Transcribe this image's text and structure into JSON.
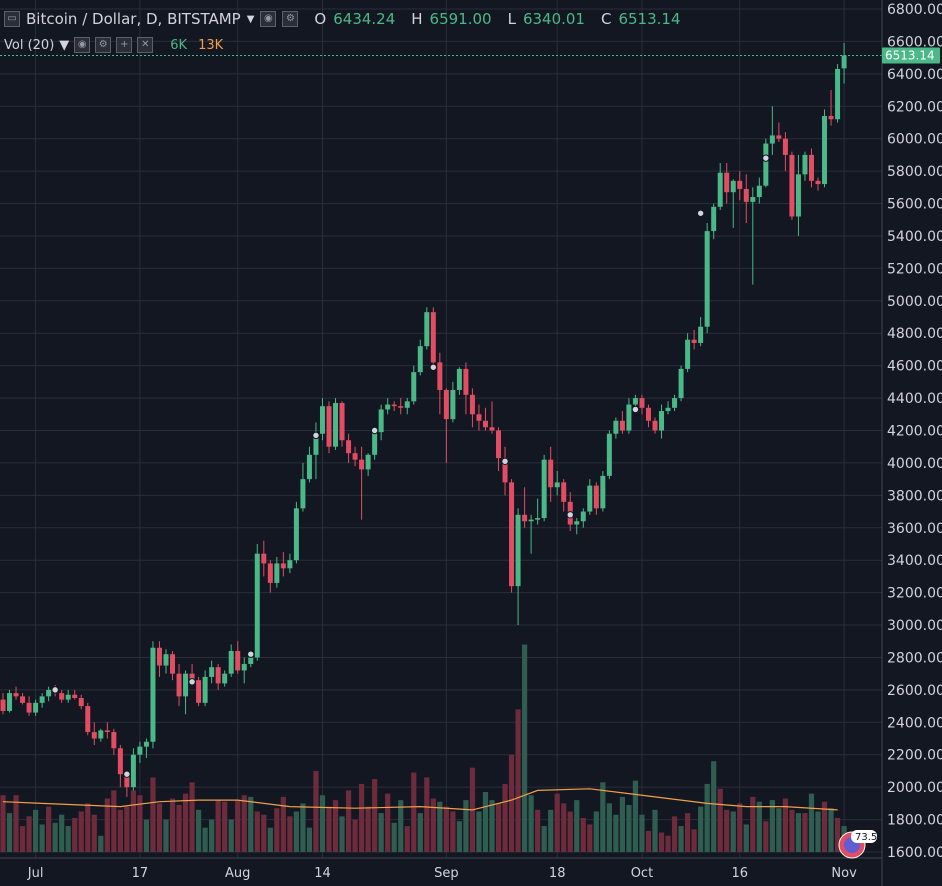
{
  "header": {
    "symbol": "Bitcoin / Dollar, D, BITSTAMP",
    "o_key": "O",
    "o_val": "6434.24",
    "h_key": "H",
    "h_val": "6591.00",
    "l_key": "L",
    "l_val": "6340.01",
    "c_key": "C",
    "c_val": "6513.14"
  },
  "volume_legend": {
    "label": "Vol (20)",
    "v1": "6K",
    "v2": "13K"
  },
  "last_price_label": "6513.14",
  "badge_text": "73.5",
  "colors": {
    "up": "#4bb887",
    "down": "#e24d64",
    "vol_up": "#2f5e50",
    "vol_down": "#6d2b3c",
    "ma": "#f0a048",
    "bg": "#131722",
    "grid": "#2a2e39"
  },
  "chart_data": {
    "type": "candlestick",
    "ylim": [
      1600,
      6800
    ],
    "y_ticks": [
      "6800.00",
      "6600.00",
      "6400.00",
      "6200.00",
      "6000.00",
      "5800.00",
      "5600.00",
      "5400.00",
      "5200.00",
      "5000.00",
      "4800.00",
      "4600.00",
      "4400.00",
      "4200.00",
      "4000.00",
      "3800.00",
      "3600.00",
      "3400.00",
      "3200.00",
      "3000.00",
      "2800.00",
      "2600.00",
      "2400.00",
      "2200.00",
      "2000.00",
      "1800.00",
      "1600.00"
    ],
    "x_labels": [
      "Jul",
      "17",
      "Aug",
      "14",
      "Sep",
      "18",
      "Oct",
      "16",
      "Nov"
    ],
    "candles": [
      [
        2540,
        2580,
        2450,
        2470
      ],
      [
        2470,
        2600,
        2460,
        2580
      ],
      [
        2580,
        2620,
        2540,
        2560
      ],
      [
        2560,
        2580,
        2510,
        2520
      ],
      [
        2520,
        2560,
        2440,
        2460
      ],
      [
        2460,
        2540,
        2440,
        2520
      ],
      [
        2520,
        2580,
        2490,
        2560
      ],
      [
        2560,
        2620,
        2530,
        2600
      ],
      [
        2600,
        2630,
        2560,
        2580
      ],
      [
        2580,
        2600,
        2520,
        2540
      ],
      [
        2540,
        2600,
        2520,
        2570
      ],
      [
        2570,
        2600,
        2540,
        2550
      ],
      [
        2550,
        2570,
        2480,
        2500
      ],
      [
        2500,
        2520,
        2320,
        2340
      ],
      [
        2340,
        2400,
        2260,
        2300
      ],
      [
        2300,
        2360,
        2280,
        2350
      ],
      [
        2350,
        2400,
        2300,
        2340
      ],
      [
        2340,
        2360,
        2200,
        2240
      ],
      [
        2240,
        2260,
        2000,
        2080
      ],
      [
        2080,
        2100,
        1940,
        2000
      ],
      [
        2000,
        2240,
        1980,
        2200
      ],
      [
        2200,
        2280,
        2150,
        2250
      ],
      [
        2250,
        2300,
        2180,
        2280
      ],
      [
        2280,
        2900,
        2240,
        2860
      ],
      [
        2860,
        2900,
        2680,
        2750
      ],
      [
        2750,
        2850,
        2700,
        2820
      ],
      [
        2820,
        2840,
        2660,
        2700
      ],
      [
        2700,
        2760,
        2500,
        2560
      ],
      [
        2560,
        2720,
        2450,
        2700
      ],
      [
        2700,
        2760,
        2640,
        2660
      ],
      [
        2660,
        2680,
        2500,
        2520
      ],
      [
        2520,
        2720,
        2500,
        2680
      ],
      [
        2680,
        2780,
        2640,
        2740
      ],
      [
        2740,
        2760,
        2600,
        2640
      ],
      [
        2640,
        2720,
        2620,
        2700
      ],
      [
        2700,
        2880,
        2680,
        2840
      ],
      [
        2840,
        2900,
        2700,
        2720
      ],
      [
        2720,
        2800,
        2640,
        2760
      ],
      [
        2760,
        2830,
        2740,
        2800
      ],
      [
        2800,
        3500,
        2780,
        3440
      ],
      [
        3440,
        3520,
        3300,
        3380
      ],
      [
        3380,
        3400,
        3200,
        3260
      ],
      [
        3260,
        3420,
        3230,
        3380
      ],
      [
        3380,
        3450,
        3300,
        3350
      ],
      [
        3350,
        3440,
        3320,
        3400
      ],
      [
        3400,
        3760,
        3380,
        3720
      ],
      [
        3720,
        4000,
        3700,
        3900
      ],
      [
        3900,
        4100,
        3880,
        4050
      ],
      [
        4050,
        4250,
        3900,
        4180
      ],
      [
        4180,
        4400,
        4140,
        4350
      ],
      [
        4350,
        4380,
        4060,
        4100
      ],
      [
        4100,
        4400,
        4080,
        4370
      ],
      [
        4370,
        4380,
        4100,
        4140
      ],
      [
        4140,
        4180,
        4000,
        4060
      ],
      [
        4060,
        4100,
        3980,
        4020
      ],
      [
        4020,
        4100,
        3650,
        3960
      ],
      [
        3960,
        4060,
        3920,
        4050
      ],
      [
        4050,
        4200,
        4020,
        4190
      ],
      [
        4190,
        4360,
        4140,
        4330
      ],
      [
        4330,
        4400,
        4300,
        4360
      ],
      [
        4360,
        4380,
        4320,
        4350
      ],
      [
        4350,
        4400,
        4300,
        4340
      ],
      [
        4340,
        4400,
        4300,
        4380
      ],
      [
        4380,
        4600,
        4360,
        4560
      ],
      [
        4560,
        4760,
        4540,
        4720
      ],
      [
        4720,
        4960,
        4700,
        4930
      ],
      [
        4930,
        4960,
        4600,
        4620
      ],
      [
        4620,
        4680,
        4300,
        4450
      ],
      [
        4450,
        4460,
        4000,
        4270
      ],
      [
        4270,
        4500,
        4250,
        4450
      ],
      [
        4450,
        4590,
        4420,
        4580
      ],
      [
        4580,
        4620,
        4300,
        4420
      ],
      [
        4420,
        4460,
        4220,
        4300
      ],
      [
        4300,
        4360,
        4200,
        4260
      ],
      [
        4260,
        4340,
        4200,
        4220
      ],
      [
        4220,
        4380,
        4180,
        4200
      ],
      [
        4200,
        4220,
        3950,
        4030
      ],
      [
        4030,
        4100,
        3800,
        3880
      ],
      [
        3880,
        3900,
        3200,
        3240
      ],
      [
        3240,
        3720,
        3000,
        3680
      ],
      [
        3680,
        3850,
        3600,
        3640
      ],
      [
        3640,
        3680,
        3440,
        3650
      ],
      [
        3650,
        3780,
        3620,
        3660
      ],
      [
        3660,
        4050,
        3640,
        4020
      ],
      [
        4020,
        4100,
        3760,
        3850
      ],
      [
        3850,
        3950,
        3800,
        3880
      ],
      [
        3880,
        3900,
        3700,
        3760
      ],
      [
        3760,
        3820,
        3580,
        3620
      ],
      [
        3620,
        3660,
        3560,
        3640
      ],
      [
        3640,
        3720,
        3600,
        3700
      ],
      [
        3700,
        3900,
        3680,
        3860
      ],
      [
        3860,
        3880,
        3680,
        3720
      ],
      [
        3720,
        3950,
        3700,
        3920
      ],
      [
        3920,
        4200,
        3900,
        4180
      ],
      [
        4180,
        4280,
        4150,
        4260
      ],
      [
        4260,
        4320,
        4180,
        4200
      ],
      [
        4200,
        4400,
        4180,
        4360
      ],
      [
        4360,
        4420,
        4320,
        4400
      ],
      [
        4400,
        4420,
        4300,
        4340
      ],
      [
        4340,
        4360,
        4220,
        4260
      ],
      [
        4260,
        4280,
        4180,
        4200
      ],
      [
        4200,
        4360,
        4150,
        4320
      ],
      [
        4320,
        4380,
        4300,
        4340
      ],
      [
        4340,
        4420,
        4320,
        4400
      ],
      [
        4400,
        4600,
        4380,
        4580
      ],
      [
        4580,
        4800,
        4560,
        4760
      ],
      [
        4760,
        4820,
        4700,
        4740
      ],
      [
        4740,
        4900,
        4720,
        4840
      ],
      [
        4840,
        5480,
        4800,
        5430
      ],
      [
        5430,
        5600,
        5380,
        5580
      ],
      [
        5580,
        5850,
        5560,
        5790
      ],
      [
        5790,
        5850,
        5600,
        5670
      ],
      [
        5670,
        5750,
        5450,
        5740
      ],
      [
        5740,
        5800,
        5620,
        5690
      ],
      [
        5690,
        5780,
        5480,
        5610
      ],
      [
        5610,
        5700,
        5100,
        5640
      ],
      [
        5640,
        5760,
        5600,
        5710
      ],
      [
        5710,
        6000,
        5700,
        5970
      ],
      [
        5970,
        6200,
        5900,
        6020
      ],
      [
        6020,
        6100,
        5980,
        6000
      ],
      [
        6000,
        6040,
        5800,
        5900
      ],
      [
        5900,
        5920,
        5500,
        5520
      ],
      [
        5520,
        5900,
        5400,
        5780
      ],
      [
        5780,
        5920,
        5740,
        5900
      ],
      [
        5900,
        5940,
        5700,
        5740
      ],
      [
        5740,
        5760,
        5680,
        5720
      ],
      [
        5720,
        6180,
        5700,
        6140
      ],
      [
        6140,
        6300,
        6080,
        6120
      ],
      [
        6120,
        6460,
        6100,
        6430
      ],
      [
        6434,
        6591,
        6340,
        6513
      ]
    ],
    "volumes": [
      [
        1950,
        0
      ],
      [
        1840,
        1
      ],
      [
        1950,
        0
      ],
      [
        1760,
        0
      ],
      [
        1820,
        0
      ],
      [
        1860,
        1
      ],
      [
        1770,
        1
      ],
      [
        1880,
        0
      ],
      [
        1780,
        1
      ],
      [
        1830,
        1
      ],
      [
        1760,
        1
      ],
      [
        1810,
        0
      ],
      [
        1850,
        0
      ],
      [
        1900,
        0
      ],
      [
        1830,
        0
      ],
      [
        1700,
        1
      ],
      [
        1930,
        0
      ],
      [
        1980,
        0
      ],
      [
        1860,
        0
      ],
      [
        1880,
        0
      ],
      [
        1980,
        0
      ],
      [
        1950,
        0
      ],
      [
        1800,
        1
      ],
      [
        2060,
        0
      ],
      [
        1900,
        0
      ],
      [
        1800,
        1
      ],
      [
        1930,
        0
      ],
      [
        1890,
        0
      ],
      [
        1960,
        0
      ],
      [
        2030,
        0
      ],
      [
        1860,
        1
      ],
      [
        1750,
        1
      ],
      [
        1800,
        1
      ],
      [
        1920,
        0
      ],
      [
        1910,
        0
      ],
      [
        1800,
        1
      ],
      [
        1920,
        0
      ],
      [
        1950,
        0
      ],
      [
        1940,
        1
      ],
      [
        1850,
        0
      ],
      [
        1830,
        0
      ],
      [
        1750,
        1
      ],
      [
        1870,
        0
      ],
      [
        1940,
        0
      ],
      [
        1820,
        0
      ],
      [
        1850,
        1
      ],
      [
        1900,
        1
      ],
      [
        1750,
        1
      ],
      [
        2100,
        0
      ],
      [
        1950,
        1
      ],
      [
        1880,
        0
      ],
      [
        1920,
        0
      ],
      [
        1820,
        1
      ],
      [
        1980,
        0
      ],
      [
        1800,
        0
      ],
      [
        2020,
        0
      ],
      [
        1880,
        0
      ],
      [
        2050,
        0
      ],
      [
        1840,
        1
      ],
      [
        1960,
        0
      ],
      [
        1780,
        1
      ],
      [
        1920,
        1
      ],
      [
        1760,
        0
      ],
      [
        2090,
        0
      ],
      [
        1840,
        1
      ],
      [
        2060,
        0
      ],
      [
        1930,
        0
      ],
      [
        1910,
        1
      ],
      [
        1880,
        0
      ],
      [
        1850,
        0
      ],
      [
        1790,
        1
      ],
      [
        1920,
        1
      ],
      [
        2120,
        0
      ],
      [
        1850,
        1
      ],
      [
        1970,
        1
      ],
      [
        1920,
        1
      ],
      [
        1900,
        0
      ],
      [
        2020,
        0
      ],
      [
        2200,
        0
      ],
      [
        2480,
        0
      ],
      [
        2880,
        1
      ],
      [
        1950,
        1
      ],
      [
        1860,
        0
      ],
      [
        1760,
        1
      ],
      [
        1860,
        1
      ],
      [
        1960,
        0
      ],
      [
        1900,
        0
      ],
      [
        1850,
        0
      ],
      [
        1920,
        1
      ],
      [
        1810,
        0
      ],
      [
        1770,
        0
      ],
      [
        1850,
        1
      ],
      [
        2030,
        1
      ],
      [
        1900,
        1
      ],
      [
        1830,
        1
      ],
      [
        1940,
        1
      ],
      [
        1890,
        1
      ],
      [
        2040,
        1
      ],
      [
        1830,
        1
      ],
      [
        1730,
        0
      ],
      [
        1860,
        1
      ],
      [
        1720,
        0
      ],
      [
        1700,
        0
      ],
      [
        1820,
        0
      ],
      [
        1760,
        1
      ],
      [
        1840,
        0
      ],
      [
        1740,
        0
      ],
      [
        1880,
        1
      ],
      [
        2020,
        1
      ],
      [
        2160,
        1
      ],
      [
        1990,
        0
      ],
      [
        1860,
        0
      ],
      [
        1850,
        1
      ],
      [
        1900,
        0
      ],
      [
        1770,
        1
      ],
      [
        1940,
        0
      ],
      [
        1910,
        1
      ],
      [
        1790,
        0
      ],
      [
        1920,
        1
      ],
      [
        1870,
        1
      ],
      [
        1930,
        0
      ],
      [
        1860,
        0
      ],
      [
        1840,
        1
      ],
      [
        1840,
        0
      ],
      [
        1960,
        1
      ],
      [
        1850,
        1
      ],
      [
        1910,
        0
      ],
      [
        1870,
        1
      ],
      [
        1810,
        0
      ],
      [
        1760,
        1
      ]
    ],
    "ma20": [
      [
        0,
        1910
      ],
      [
        6,
        1900
      ],
      [
        12,
        1890
      ],
      [
        18,
        1880
      ],
      [
        24,
        1910
      ],
      [
        30,
        1920
      ],
      [
        36,
        1920
      ],
      [
        44,
        1880
      ],
      [
        54,
        1870
      ],
      [
        64,
        1880
      ],
      [
        72,
        1860
      ],
      [
        78,
        1920
      ],
      [
        82,
        1980
      ],
      [
        90,
        1990
      ],
      [
        96,
        1960
      ],
      [
        102,
        1930
      ],
      [
        108,
        1900
      ],
      [
        114,
        1880
      ],
      [
        120,
        1880
      ],
      [
        128,
        1860
      ]
    ],
    "ema_dots": [
      [
        8,
        2600
      ],
      [
        19,
        2080
      ],
      [
        29,
        2650
      ],
      [
        38,
        2820
      ],
      [
        48,
        4170
      ],
      [
        57,
        4200
      ],
      [
        66,
        4590
      ],
      [
        77,
        4010
      ],
      [
        87,
        3680
      ],
      [
        97,
        4330
      ],
      [
        107,
        5540
      ],
      [
        117,
        5880
      ]
    ]
  }
}
